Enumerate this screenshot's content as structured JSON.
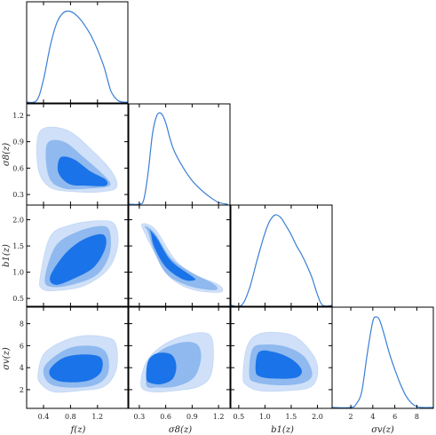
{
  "chart_data": {
    "type": "corner",
    "title": "",
    "colors": {
      "line": "#3a7fd5",
      "level_outer": "#cfe0f8",
      "level_middle": "#8fb9ef",
      "level_inner": "#1a73e8"
    },
    "parameters": [
      {
        "key": "f",
        "label": "f(z)",
        "range": [
          0.15,
          1.65
        ],
        "ticks": [
          0.4,
          0.8,
          1.2
        ],
        "tick_labels": [
          "0.4",
          "0.8",
          "1.2"
        ]
      },
      {
        "key": "s8",
        "label": "σ8(z)",
        "range": [
          0.18,
          1.33
        ],
        "ticks": [
          0.3,
          0.6,
          0.9,
          1.2
        ],
        "tick_labels": [
          "0.3",
          "0.6",
          "0.9",
          "1.2"
        ]
      },
      {
        "key": "b1",
        "label": "b1(z)",
        "range": [
          0.35,
          2.28
        ],
        "ticks": [
          0.5,
          1.0,
          1.5,
          2.0
        ],
        "tick_labels": [
          "0.5",
          "1.0",
          "1.5",
          "2.0"
        ]
      },
      {
        "key": "sv",
        "label": "σv(z)",
        "range": [
          0.3,
          9.5
        ],
        "ticks": [
          2,
          4,
          6,
          8
        ],
        "tick_labels": [
          "2",
          "4",
          "6",
          "8"
        ]
      }
    ],
    "marginals": [
      {
        "param": "f",
        "x": [
          0.15,
          0.3,
          0.4,
          0.5,
          0.6,
          0.7,
          0.8,
          0.9,
          1.0,
          1.1,
          1.2,
          1.3,
          1.4,
          1.5,
          1.58,
          1.65
        ],
        "density": [
          0,
          0.02,
          0.25,
          0.62,
          0.88,
          0.99,
          1.0,
          0.95,
          0.86,
          0.74,
          0.58,
          0.38,
          0.12,
          0.02,
          0,
          0
        ]
      },
      {
        "param": "s8",
        "x": [
          0.18,
          0.3,
          0.35,
          0.4,
          0.45,
          0.5,
          0.55,
          0.6,
          0.65,
          0.7,
          0.8,
          0.9,
          1.0,
          1.1,
          1.2,
          1.3
        ],
        "density": [
          0,
          0,
          0.05,
          0.35,
          0.78,
          0.98,
          1.0,
          0.9,
          0.72,
          0.58,
          0.4,
          0.26,
          0.16,
          0.08,
          0.02,
          0
        ]
      },
      {
        "param": "b1",
        "x": [
          0.35,
          0.55,
          0.7,
          0.85,
          1.0,
          1.1,
          1.2,
          1.3,
          1.4,
          1.5,
          1.6,
          1.7,
          1.8,
          1.9,
          2.0,
          2.1,
          2.28
        ],
        "density": [
          0,
          0,
          0.18,
          0.5,
          0.8,
          0.94,
          1.0,
          0.97,
          0.88,
          0.78,
          0.66,
          0.56,
          0.44,
          0.3,
          0.12,
          0,
          0
        ]
      },
      {
        "param": "sv",
        "x": [
          0.3,
          2.0,
          2.5,
          3.0,
          3.5,
          4.0,
          4.3,
          4.6,
          5.0,
          5.5,
          6.0,
          6.5,
          7.0,
          7.5,
          8.0,
          8.5,
          9.5
        ],
        "density": [
          0,
          0,
          0.04,
          0.18,
          0.6,
          0.95,
          1.0,
          0.97,
          0.82,
          0.6,
          0.42,
          0.26,
          0.13,
          0.05,
          0.01,
          0,
          0
        ]
      }
    ],
    "joint_contours": [
      {
        "x_param": "f",
        "y_param": "s8",
        "levels": [
          [
            [
              0.35,
              1.02
            ],
            [
              0.75,
              1.03
            ],
            [
              1.15,
              0.78
            ],
            [
              1.42,
              0.55
            ],
            [
              1.48,
              0.38
            ],
            [
              1.25,
              0.33
            ],
            [
              0.9,
              0.33
            ],
            [
              0.5,
              0.38
            ],
            [
              0.32,
              0.6
            ]
          ],
          [
            [
              0.45,
              0.87
            ],
            [
              0.7,
              0.9
            ],
            [
              1.0,
              0.72
            ],
            [
              1.32,
              0.5
            ],
            [
              1.38,
              0.4
            ],
            [
              1.1,
              0.37
            ],
            [
              0.7,
              0.37
            ],
            [
              0.48,
              0.5
            ]
          ],
          [
            [
              0.65,
              0.72
            ],
            [
              0.85,
              0.7
            ],
            [
              1.1,
              0.56
            ],
            [
              1.32,
              0.47
            ],
            [
              1.32,
              0.4
            ],
            [
              1.05,
              0.4
            ],
            [
              0.78,
              0.42
            ],
            [
              0.62,
              0.55
            ]
          ]
        ]
      },
      {
        "x_param": "f",
        "y_param": "b1",
        "levels": [
          [
            [
              0.35,
              0.9
            ],
            [
              0.5,
              1.68
            ],
            [
              0.8,
              1.9
            ],
            [
              1.2,
              1.98
            ],
            [
              1.45,
              1.92
            ],
            [
              1.5,
              1.5
            ],
            [
              1.35,
              1.05
            ],
            [
              1.0,
              0.74
            ],
            [
              0.6,
              0.65
            ],
            [
              0.38,
              0.68
            ]
          ],
          [
            [
              0.42,
              0.88
            ],
            [
              0.58,
              1.5
            ],
            [
              0.9,
              1.77
            ],
            [
              1.25,
              1.88
            ],
            [
              1.38,
              1.78
            ],
            [
              1.38,
              1.35
            ],
            [
              1.2,
              0.96
            ],
            [
              0.85,
              0.77
            ],
            [
              0.52,
              0.72
            ]
          ],
          [
            [
              0.5,
              0.92
            ],
            [
              0.72,
              1.35
            ],
            [
              1.0,
              1.63
            ],
            [
              1.28,
              1.72
            ],
            [
              1.32,
              1.48
            ],
            [
              1.15,
              1.1
            ],
            [
              0.85,
              0.88
            ],
            [
              0.58,
              0.76
            ]
          ]
        ]
      },
      {
        "x_param": "s8",
        "y_param": "b1",
        "levels": [
          [
            [
              0.37,
              1.72
            ],
            [
              0.33,
              1.92
            ],
            [
              0.48,
              1.82
            ],
            [
              0.7,
              1.25
            ],
            [
              0.92,
              0.96
            ],
            [
              1.2,
              0.76
            ],
            [
              1.22,
              0.62
            ],
            [
              0.9,
              0.67
            ],
            [
              0.65,
              0.9
            ],
            [
              0.5,
              1.3
            ]
          ],
          [
            [
              0.4,
              1.76
            ],
            [
              0.36,
              1.88
            ],
            [
              0.47,
              1.76
            ],
            [
              0.66,
              1.27
            ],
            [
              0.9,
              0.99
            ],
            [
              1.15,
              0.77
            ],
            [
              1.16,
              0.66
            ],
            [
              0.88,
              0.73
            ],
            [
              0.62,
              0.95
            ],
            [
              0.48,
              1.35
            ]
          ],
          [
            [
              0.43,
              1.75
            ],
            [
              0.41,
              1.82
            ],
            [
              0.5,
              1.65
            ],
            [
              0.66,
              1.22
            ],
            [
              0.9,
              0.92
            ],
            [
              0.93,
              0.85
            ],
            [
              0.8,
              0.86
            ],
            [
              0.6,
              1.1
            ],
            [
              0.47,
              1.48
            ]
          ]
        ]
      },
      {
        "x_param": "f",
        "y_param": "sv",
        "levels": [
          [
            [
              0.32,
              3.5
            ],
            [
              0.4,
              5.2
            ],
            [
              0.65,
              6.3
            ],
            [
              0.98,
              6.9
            ],
            [
              1.3,
              6.8
            ],
            [
              1.47,
              6.2
            ],
            [
              1.48,
              3.9
            ],
            [
              1.3,
              2.3
            ],
            [
              0.92,
              1.9
            ],
            [
              0.55,
              1.8
            ],
            [
              0.35,
              2.6
            ]
          ],
          [
            [
              0.4,
              3.9
            ],
            [
              0.58,
              5.1
            ],
            [
              0.85,
              5.9
            ],
            [
              1.2,
              5.9
            ],
            [
              1.35,
              5.1
            ],
            [
              1.35,
              3.4
            ],
            [
              1.15,
              2.4
            ],
            [
              0.75,
              2.2
            ],
            [
              0.48,
              2.6
            ]
          ],
          [
            [
              0.5,
              3.9
            ],
            [
              0.7,
              4.9
            ],
            [
              1.0,
              5.2
            ],
            [
              1.25,
              4.9
            ],
            [
              1.25,
              3.6
            ],
            [
              1.05,
              2.8
            ],
            [
              0.7,
              2.7
            ],
            [
              0.52,
              3.1
            ]
          ]
        ]
      },
      {
        "x_param": "s8",
        "y_param": "sv",
        "levels": [
          [
            [
              0.32,
              2.3
            ],
            [
              0.36,
              4.2
            ],
            [
              0.48,
              5.5
            ],
            [
              0.7,
              6.6
            ],
            [
              1.0,
              7.2
            ],
            [
              1.13,
              6.5
            ],
            [
              1.12,
              3.5
            ],
            [
              0.98,
              2.3
            ],
            [
              0.7,
              1.9
            ],
            [
              0.45,
              1.8
            ]
          ],
          [
            [
              0.38,
              2.4
            ],
            [
              0.42,
              4.4
            ],
            [
              0.55,
              5.6
            ],
            [
              0.78,
              6.3
            ],
            [
              0.96,
              6.1
            ],
            [
              1.0,
              4.8
            ],
            [
              0.92,
              3.1
            ],
            [
              0.72,
              2.3
            ],
            [
              0.5,
              2.2
            ]
          ],
          [
            [
              0.38,
              3.0
            ],
            [
              0.4,
              4.6
            ],
            [
              0.5,
              5.3
            ],
            [
              0.66,
              5.2
            ],
            [
              0.72,
              4.2
            ],
            [
              0.68,
              3.0
            ],
            [
              0.55,
              2.5
            ],
            [
              0.43,
              2.6
            ]
          ]
        ]
      },
      {
        "x_param": "b1",
        "y_param": "sv",
        "levels": [
          [
            [
              0.58,
              3.2
            ],
            [
              0.65,
              5.8
            ],
            [
              0.85,
              7.0
            ],
            [
              1.25,
              7.2
            ],
            [
              1.62,
              6.7
            ],
            [
              1.95,
              4.9
            ],
            [
              2.0,
              3.3
            ],
            [
              1.85,
              2.2
            ],
            [
              1.4,
              1.9
            ],
            [
              0.9,
              1.9
            ],
            [
              0.65,
              2.4
            ]
          ],
          [
            [
              0.7,
              3.4
            ],
            [
              0.76,
              5.7
            ],
            [
              1.0,
              6.1
            ],
            [
              1.4,
              5.9
            ],
            [
              1.75,
              5.0
            ],
            [
              1.9,
              3.4
            ],
            [
              1.72,
              2.6
            ],
            [
              1.25,
              2.4
            ],
            [
              0.8,
              2.7
            ]
          ],
          [
            [
              0.82,
              3.8
            ],
            [
              0.88,
              5.4
            ],
            [
              1.15,
              5.45
            ],
            [
              1.5,
              4.8
            ],
            [
              1.7,
              3.8
            ],
            [
              1.6,
              3.1
            ],
            [
              1.2,
              3.0
            ],
            [
              0.9,
              3.2
            ]
          ]
        ]
      }
    ]
  }
}
